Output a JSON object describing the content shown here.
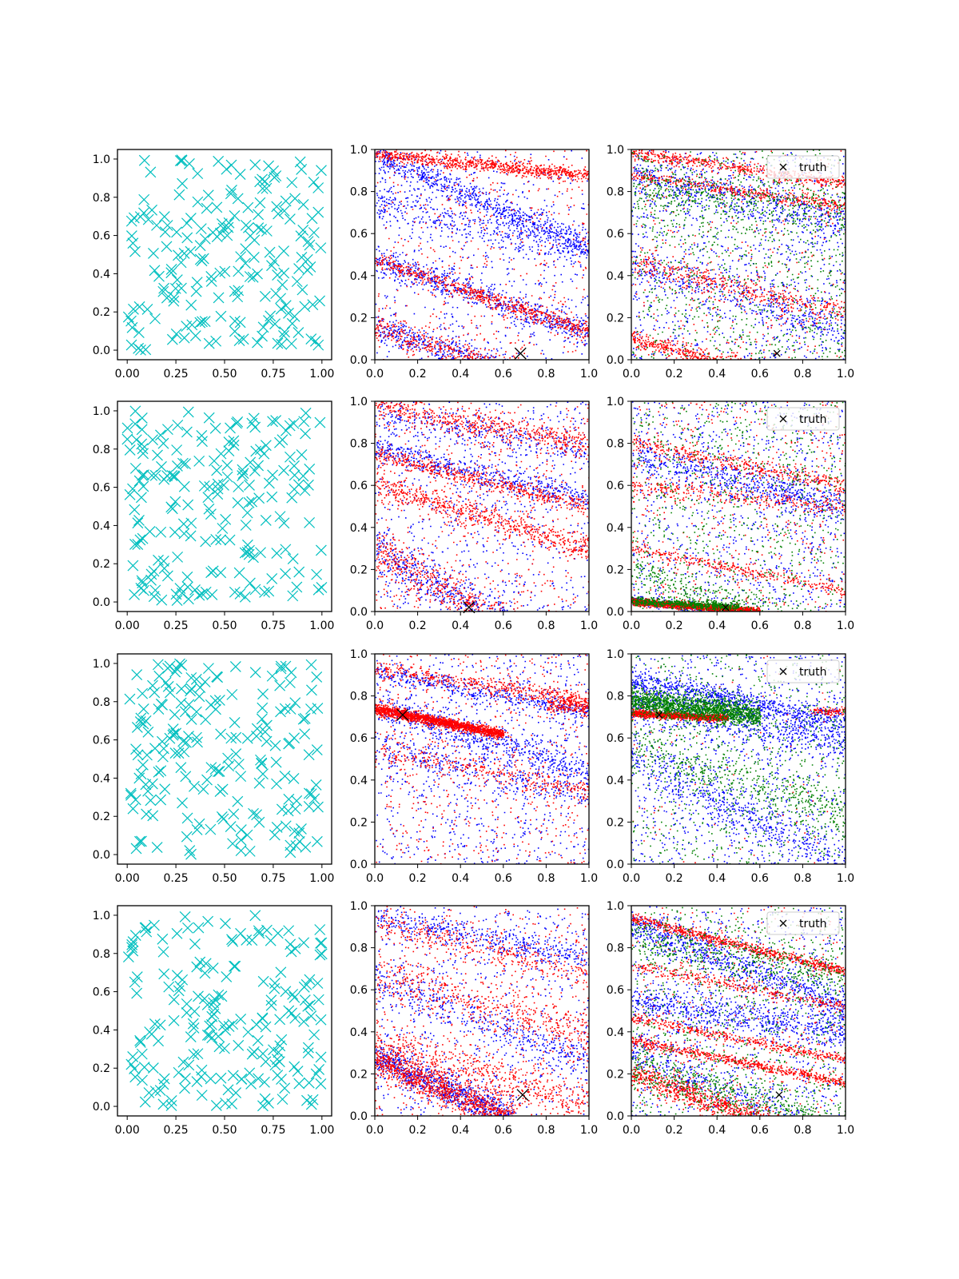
{
  "figure": {
    "background": "#ffffff"
  },
  "colors": {
    "cyan": "#00bfbf",
    "blue": "#0000ff",
    "red": "#ff0000",
    "green": "#008000",
    "truth": "#000000"
  },
  "chart_data": [
    {
      "type": "scatter",
      "row": 0,
      "col": 0,
      "xlim": [
        -0.05,
        1.05
      ],
      "ylim": [
        -0.05,
        1.05
      ],
      "xticks": [
        "0.00",
        "0.25",
        "0.50",
        "0.75",
        "1.00"
      ],
      "yticks": [
        "0.0",
        "0.2",
        "0.4",
        "0.6",
        "0.8",
        "1.0"
      ],
      "series": [
        {
          "color": "#00bfbf",
          "marker": "x",
          "count": 200,
          "distribution": "uniform",
          "seed": 11
        }
      ]
    },
    {
      "type": "scatter",
      "row": 0,
      "col": 1,
      "xlim": [
        0,
        1
      ],
      "ylim": [
        0,
        1
      ],
      "xticks": [
        "0.0",
        "0.2",
        "0.4",
        "0.6",
        "0.8",
        "1.0"
      ],
      "yticks": [
        "0.0",
        "0.2",
        "0.4",
        "0.6",
        "0.8",
        "1.0"
      ],
      "series": [
        {
          "color": "#0000ff",
          "bands": [
            {
              "a": 0.98,
              "b": -0.45,
              "w": 0.03,
              "n": 700
            },
            {
              "a": 0.48,
              "b": -0.35,
              "w": 0.03,
              "n": 600
            },
            {
              "a": 0.15,
              "b": -0.3,
              "w": 0.03,
              "n": 600
            },
            {
              "a": 0.76,
              "b": -0.25,
              "w": 0.05,
              "n": 400
            }
          ],
          "noise": 600
        },
        {
          "color": "#ff0000",
          "bands": [
            {
              "a": 0.98,
              "b": -0.1,
              "w": 0.015,
              "n": 800
            },
            {
              "a": 0.48,
              "b": -0.35,
              "w": 0.02,
              "n": 600
            },
            {
              "a": 0.15,
              "b": -0.3,
              "w": 0.03,
              "n": 500
            }
          ],
          "noise": 500
        }
      ],
      "truth": {
        "x": 0.68,
        "y": 0.03,
        "marker": "x-large"
      }
    },
    {
      "type": "scatter",
      "row": 0,
      "col": 2,
      "xlim": [
        0,
        1
      ],
      "ylim": [
        0,
        1
      ],
      "xticks": [
        "0.0",
        "0.2",
        "0.4",
        "0.6",
        "0.8",
        "1.0"
      ],
      "yticks": [
        "0.0",
        "0.2",
        "0.4",
        "0.6",
        "0.8",
        "1.0"
      ],
      "series": [
        {
          "color": "#0000ff",
          "bands": [
            {
              "a": 0.9,
              "b": -0.25,
              "w": 0.05,
              "n": 500
            },
            {
              "a": 0.45,
              "b": -0.3,
              "w": 0.05,
              "n": 400
            }
          ],
          "noise": 900
        },
        {
          "color": "#ff0000",
          "bands": [
            {
              "a": 0.99,
              "b": -0.15,
              "w": 0.015,
              "n": 500
            },
            {
              "a": 0.88,
              "b": -0.15,
              "w": 0.015,
              "n": 400
            },
            {
              "a": 0.47,
              "b": -0.25,
              "w": 0.03,
              "n": 400
            },
            {
              "a": 0.1,
              "b": -0.25,
              "w": 0.02,
              "n": 700
            }
          ],
          "noise": 400
        },
        {
          "color": "#008000",
          "bands": [
            {
              "a": 0.8,
              "b": -0.1,
              "w": 0.06,
              "n": 400
            }
          ],
          "noise": 900
        }
      ],
      "truth": {
        "x": 0.68,
        "y": 0.03,
        "marker": "x-small"
      },
      "legend": {
        "label": "truth",
        "position": "upper right"
      }
    },
    {
      "type": "scatter",
      "row": 1,
      "col": 0,
      "xlim": [
        -0.05,
        1.05
      ],
      "ylim": [
        -0.05,
        1.05
      ],
      "xticks": [
        "0.00",
        "0.25",
        "0.50",
        "0.75",
        "1.00"
      ],
      "yticks": [
        "0.0",
        "0.2",
        "0.4",
        "0.6",
        "0.8",
        "1.0"
      ],
      "series": [
        {
          "color": "#00bfbf",
          "marker": "x",
          "count": 200,
          "distribution": "uniform",
          "seed": 23
        }
      ]
    },
    {
      "type": "scatter",
      "row": 1,
      "col": 1,
      "xlim": [
        0,
        1
      ],
      "ylim": [
        0,
        1
      ],
      "xticks": [
        "0.0",
        "0.2",
        "0.4",
        "0.6",
        "0.8",
        "1.0"
      ],
      "yticks": [
        "0.0",
        "0.2",
        "0.4",
        "0.6",
        "0.8",
        "1.0"
      ],
      "series": [
        {
          "color": "#0000ff",
          "bands": [
            {
              "a": 0.78,
              "b": -0.25,
              "w": 0.03,
              "n": 500
            },
            {
              "a": 0.3,
              "b": -0.6,
              "w": 0.05,
              "n": 700
            },
            {
              "a": 0.95,
              "b": -0.2,
              "w": 0.04,
              "n": 300
            }
          ],
          "noise": 700
        },
        {
          "color": "#ff0000",
          "bands": [
            {
              "a": 0.75,
              "b": -0.25,
              "w": 0.02,
              "n": 500
            },
            {
              "a": 0.3,
              "b": -0.6,
              "w": 0.05,
              "n": 700
            },
            {
              "a": 0.6,
              "b": -0.3,
              "w": 0.03,
              "n": 600
            },
            {
              "a": 0.98,
              "b": -0.18,
              "w": 0.03,
              "n": 500
            }
          ],
          "noise": 600
        }
      ],
      "truth": {
        "x": 0.44,
        "y": 0.02,
        "marker": "x-large"
      }
    },
    {
      "type": "scatter",
      "row": 1,
      "col": 2,
      "xlim": [
        0,
        1
      ],
      "ylim": [
        0,
        1
      ],
      "xticks": [
        "0.0",
        "0.2",
        "0.4",
        "0.6",
        "0.8",
        "1.0"
      ],
      "yticks": [
        "0.0",
        "0.2",
        "0.4",
        "0.6",
        "0.8",
        "1.0"
      ],
      "series": [
        {
          "color": "#0000ff",
          "bands": [
            {
              "a": 0.75,
              "b": -0.25,
              "w": 0.04,
              "n": 600
            },
            {
              "a": 0.06,
              "b": -0.15,
              "w": 0.015,
              "n": 400
            }
          ],
          "noise": 900
        },
        {
          "color": "#ff0000",
          "bands": [
            {
              "a": 0.8,
              "b": -0.2,
              "w": 0.02,
              "n": 400
            },
            {
              "a": 0.6,
              "b": -0.1,
              "w": 0.02,
              "n": 300
            },
            {
              "a": 0.3,
              "b": -0.2,
              "w": 0.015,
              "n": 300
            },
            {
              "a": 0.05,
              "b": -0.08,
              "w": 0.008,
              "n": 1500,
              "xmax": 0.6
            }
          ],
          "noise": 500
        },
        {
          "color": "#008000",
          "bands": [
            {
              "a": 0.22,
              "b": -0.4,
              "w": 0.05,
              "n": 400
            },
            {
              "a": 0.05,
              "b": -0.05,
              "w": 0.01,
              "n": 600,
              "xmax": 0.5
            }
          ],
          "noise": 800
        }
      ],
      "truth": {
        "x": 0.44,
        "y": 0.02,
        "marker": "x-small"
      },
      "legend": {
        "label": "truth",
        "position": "upper right"
      }
    },
    {
      "type": "scatter",
      "row": 2,
      "col": 0,
      "xlim": [
        -0.05,
        1.05
      ],
      "ylim": [
        -0.05,
        1.05
      ],
      "xticks": [
        "0.00",
        "0.25",
        "0.50",
        "0.75",
        "1.00"
      ],
      "yticks": [
        "0.0",
        "0.2",
        "0.4",
        "0.6",
        "0.8",
        "1.0"
      ],
      "series": [
        {
          "color": "#00bfbf",
          "marker": "x",
          "count": 200,
          "distribution": "uniform",
          "seed": 37
        }
      ]
    },
    {
      "type": "scatter",
      "row": 2,
      "col": 1,
      "xlim": [
        0,
        1
      ],
      "ylim": [
        0,
        1
      ],
      "xticks": [
        "0.0",
        "0.2",
        "0.4",
        "0.6",
        "0.8",
        "1.0"
      ],
      "yticks": [
        "0.0",
        "0.2",
        "0.4",
        "0.6",
        "0.8",
        "1.0"
      ],
      "series": [
        {
          "color": "#0000ff",
          "bands": [
            {
              "a": 0.75,
              "b": -0.3,
              "w": 0.04,
              "n": 600
            },
            {
              "a": 0.92,
              "b": -0.2,
              "w": 0.02,
              "n": 400
            },
            {
              "a": 0.55,
              "b": -0.2,
              "w": 0.05,
              "n": 300
            }
          ],
          "noise": 800
        },
        {
          "color": "#ff0000",
          "bands": [
            {
              "a": 0.74,
              "b": -0.2,
              "w": 0.012,
              "n": 1600,
              "xmax": 0.6
            },
            {
              "a": 0.93,
              "b": -0.15,
              "w": 0.02,
              "n": 400
            },
            {
              "a": 0.55,
              "b": -0.2,
              "w": 0.03,
              "n": 300
            },
            {
              "a": 0.8,
              "b": -0.05,
              "w": 0.02,
              "n": 200,
              "xmin": 0.8
            }
          ],
          "noise": 600
        }
      ],
      "truth": {
        "x": 0.13,
        "y": 0.71,
        "marker": "x-large"
      }
    },
    {
      "type": "scatter",
      "row": 2,
      "col": 2,
      "xlim": [
        0,
        1
      ],
      "ylim": [
        0,
        1
      ],
      "xticks": [
        "0.0",
        "0.2",
        "0.4",
        "0.6",
        "0.8",
        "1.0"
      ],
      "yticks": [
        "0.0",
        "0.2",
        "0.4",
        "0.6",
        "0.8",
        "1.0"
      ],
      "series": [
        {
          "color": "#0000ff",
          "bands": [
            {
              "a": 0.88,
              "b": -0.2,
              "w": 0.03,
              "n": 700
            },
            {
              "a": 0.78,
              "b": -0.2,
              "w": 0.05,
              "n": 700
            },
            {
              "a": 0.5,
              "b": -0.5,
              "w": 0.05,
              "n": 500
            }
          ],
          "noise": 900
        },
        {
          "color": "#ff0000",
          "bands": [
            {
              "a": 0.72,
              "b": -0.05,
              "w": 0.008,
              "n": 1200,
              "xmax": 0.45
            },
            {
              "a": 0.73,
              "b": 0.0,
              "w": 0.008,
              "n": 100,
              "xmin": 0.85
            }
          ],
          "noise": 100
        },
        {
          "color": "#008000",
          "bands": [
            {
              "a": 0.78,
              "b": -0.12,
              "w": 0.03,
              "n": 1500,
              "xmax": 0.6
            },
            {
              "a": 0.55,
              "b": -0.3,
              "w": 0.06,
              "n": 400
            }
          ],
          "noise": 800
        }
      ],
      "truth": {
        "x": 0.13,
        "y": 0.71,
        "marker": "x-small"
      },
      "legend": {
        "label": "truth",
        "position": "upper right"
      }
    },
    {
      "type": "scatter",
      "row": 3,
      "col": 0,
      "xlim": [
        -0.05,
        1.05
      ],
      "ylim": [
        -0.05,
        1.05
      ],
      "xticks": [
        "0.00",
        "0.25",
        "0.50",
        "0.75",
        "1.00"
      ],
      "yticks": [
        "0.0",
        "0.2",
        "0.4",
        "0.6",
        "0.8",
        "1.0"
      ],
      "series": [
        {
          "color": "#00bfbf",
          "marker": "x",
          "count": 200,
          "distribution": "uniform",
          "seed": 51
        }
      ]
    },
    {
      "type": "scatter",
      "row": 3,
      "col": 1,
      "xlim": [
        0,
        1
      ],
      "ylim": [
        0,
        1
      ],
      "xticks": [
        "0.0",
        "0.2",
        "0.4",
        "0.6",
        "0.8",
        "1.0"
      ],
      "yticks": [
        "0.0",
        "0.2",
        "0.4",
        "0.6",
        "0.8",
        "1.0"
      ],
      "series": [
        {
          "color": "#0000ff",
          "bands": [
            {
              "a": 0.28,
              "b": -0.45,
              "w": 0.04,
              "n": 800,
              "xmax": 0.65
            },
            {
              "a": 0.95,
              "b": -0.2,
              "w": 0.03,
              "n": 400
            },
            {
              "a": 0.65,
              "b": -0.4,
              "w": 0.05,
              "n": 400
            }
          ],
          "noise": 700
        },
        {
          "color": "#ff0000",
          "bands": [
            {
              "a": 0.27,
              "b": -0.45,
              "w": 0.04,
              "n": 1000,
              "xmax": 0.65
            },
            {
              "a": 0.35,
              "b": -0.3,
              "w": 0.05,
              "n": 500
            },
            {
              "a": 0.68,
              "b": -0.3,
              "w": 0.05,
              "n": 400
            },
            {
              "a": 0.92,
              "b": -0.25,
              "w": 0.03,
              "n": 300
            }
          ],
          "noise": 600
        }
      ],
      "truth": {
        "x": 0.69,
        "y": 0.1,
        "marker": "x-large"
      }
    },
    {
      "type": "scatter",
      "row": 3,
      "col": 2,
      "xlim": [
        0,
        1
      ],
      "ylim": [
        0,
        1
      ],
      "xticks": [
        "0.0",
        "0.2",
        "0.4",
        "0.6",
        "0.8",
        "1.0"
      ],
      "yticks": [
        "0.0",
        "0.2",
        "0.4",
        "0.6",
        "0.8",
        "1.0"
      ],
      "series": [
        {
          "color": "#0000ff",
          "bands": [
            {
              "a": 0.92,
              "b": -0.4,
              "w": 0.04,
              "n": 700
            },
            {
              "a": 0.55,
              "b": -0.15,
              "w": 0.04,
              "n": 600
            },
            {
              "a": 0.3,
              "b": -0.4,
              "w": 0.04,
              "n": 300
            }
          ],
          "noise": 900
        },
        {
          "color": "#ff0000",
          "bands": [
            {
              "a": 0.94,
              "b": -0.25,
              "w": 0.012,
              "n": 700
            },
            {
              "a": 0.36,
              "b": -0.2,
              "w": 0.012,
              "n": 600
            },
            {
              "a": 0.47,
              "b": -0.2,
              "w": 0.012,
              "n": 400
            },
            {
              "a": 0.2,
              "b": -0.35,
              "w": 0.03,
              "n": 800,
              "xmax": 0.7
            },
            {
              "a": 0.72,
              "b": -0.2,
              "w": 0.015,
              "n": 300
            }
          ],
          "noise": 400
        },
        {
          "color": "#008000",
          "bands": [
            {
              "a": 0.25,
              "b": -0.3,
              "w": 0.05,
              "n": 500
            },
            {
              "a": 0.85,
              "b": -0.2,
              "w": 0.05,
              "n": 400
            }
          ],
          "noise": 800
        }
      ],
      "truth": {
        "x": 0.69,
        "y": 0.1,
        "marker": "x-small"
      },
      "legend": {
        "label": "truth",
        "position": "upper right"
      }
    }
  ]
}
